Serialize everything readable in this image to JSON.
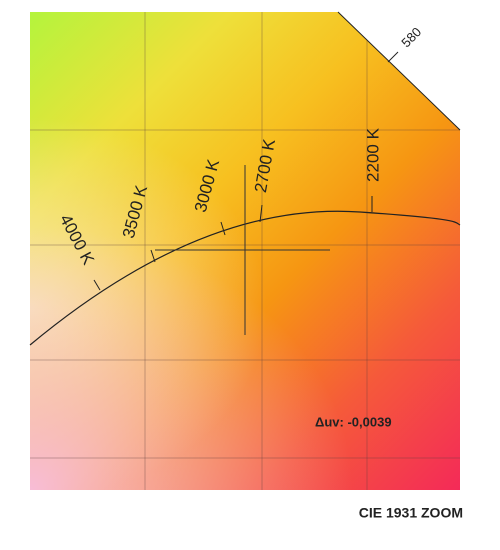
{
  "wavelength_label": "580",
  "cct_labels": [
    "4000 K",
    "3500 K",
    "3000 K",
    "2700 K",
    "2200 K"
  ],
  "delta_uv": "Δuv: -0,0039",
  "caption": "CIE 1931 ZOOM"
}
